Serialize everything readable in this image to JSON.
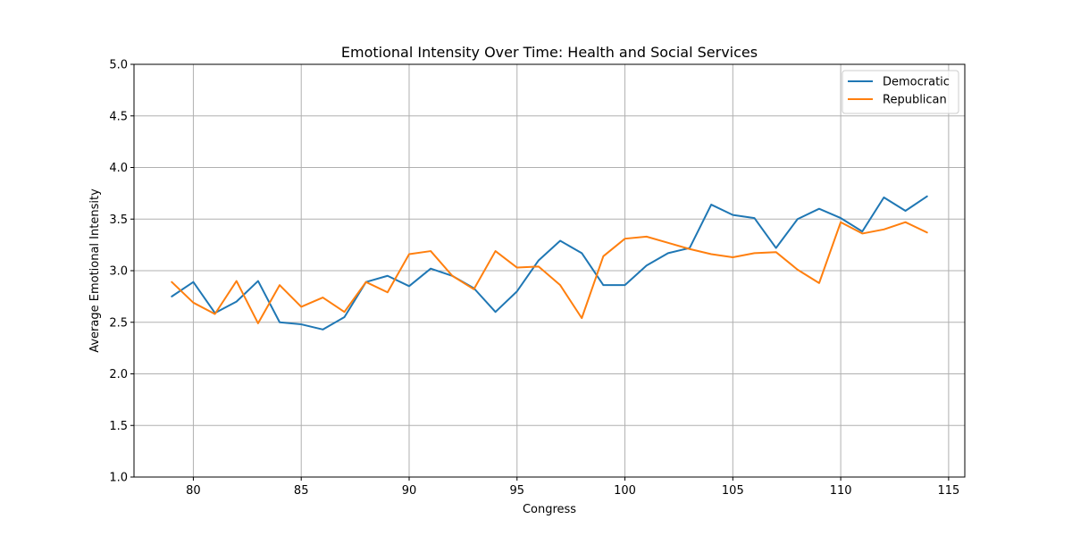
{
  "chart_data": {
    "type": "line",
    "title": "Emotional Intensity Over Time: Health and Social Services",
    "xlabel": "Congress",
    "ylabel": "Average Emotional Intensity",
    "xlim": [
      77.25,
      115.75
    ],
    "ylim": [
      1.0,
      5.0
    ],
    "xticks": [
      80,
      85,
      90,
      95,
      100,
      105,
      110,
      115
    ],
    "yticks": [
      1.0,
      1.5,
      2.0,
      2.5,
      3.0,
      3.5,
      4.0,
      4.5,
      5.0
    ],
    "grid": true,
    "legend_position": "top-right",
    "x": [
      79,
      80,
      81,
      82,
      83,
      84,
      85,
      86,
      87,
      88,
      89,
      90,
      91,
      92,
      93,
      94,
      95,
      96,
      97,
      98,
      99,
      100,
      101,
      102,
      103,
      104,
      105,
      106,
      107,
      108,
      109,
      110,
      111,
      112,
      113,
      114
    ],
    "series": [
      {
        "name": "Democratic",
        "color": "#1f77b4",
        "values": [
          2.75,
          2.89,
          2.59,
          2.7,
          2.9,
          2.5,
          2.48,
          2.43,
          2.55,
          2.89,
          2.95,
          2.85,
          3.02,
          2.95,
          2.83,
          2.6,
          2.8,
          3.1,
          3.29,
          3.17,
          2.86,
          2.86,
          3.05,
          3.17,
          3.22,
          3.64,
          3.54,
          3.51,
          3.22,
          3.5,
          3.6,
          3.51,
          3.38,
          3.71,
          3.58,
          3.72
        ]
      },
      {
        "name": "Republican",
        "color": "#ff7f0e",
        "values": [
          2.89,
          2.69,
          2.58,
          2.9,
          2.49,
          2.86,
          2.65,
          2.74,
          2.6,
          2.89,
          2.79,
          3.16,
          3.19,
          2.95,
          2.82,
          3.19,
          3.03,
          3.04,
          2.86,
          2.54,
          3.14,
          3.31,
          3.33,
          3.27,
          3.21,
          3.16,
          3.13,
          3.17,
          3.18,
          3.01,
          2.88,
          3.47,
          3.36,
          3.4,
          3.47,
          3.37
        ]
      }
    ]
  }
}
